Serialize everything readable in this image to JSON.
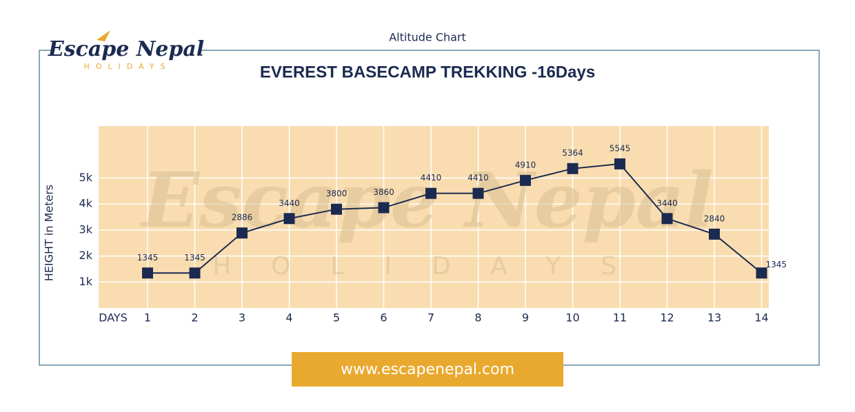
{
  "chart_data": {
    "type": "line",
    "header": "Altitude Chart",
    "logo": {
      "name": "Escape Nepal",
      "tagline": "HOLIDAYS"
    },
    "title": "EVEREST BASECAMP TREKKING -16Days",
    "y_label": "HEIGHT in Meters",
    "x_label": "DAYS",
    "footer": "www.escapenepal.com",
    "categories": [
      "1",
      "2",
      "3",
      "4",
      "5",
      "6",
      "7",
      "8",
      "9",
      "10",
      "11",
      "12",
      "13",
      "14"
    ],
    "values": [
      1345,
      1345,
      2886,
      3440,
      3800,
      3860,
      4410,
      4410,
      4910,
      5364,
      5545,
      3440,
      2840,
      1345
    ],
    "color": "#1b2a50",
    "ylim": [
      0,
      7000
    ],
    "yticks": [
      {
        "value": 1000,
        "label": "1k"
      },
      {
        "value": 2000,
        "label": "2k"
      },
      {
        "value": 3000,
        "label": "3k"
      },
      {
        "value": 4000,
        "label": "4k"
      },
      {
        "value": 5000,
        "label": "5k"
      }
    ],
    "grid": true
  }
}
